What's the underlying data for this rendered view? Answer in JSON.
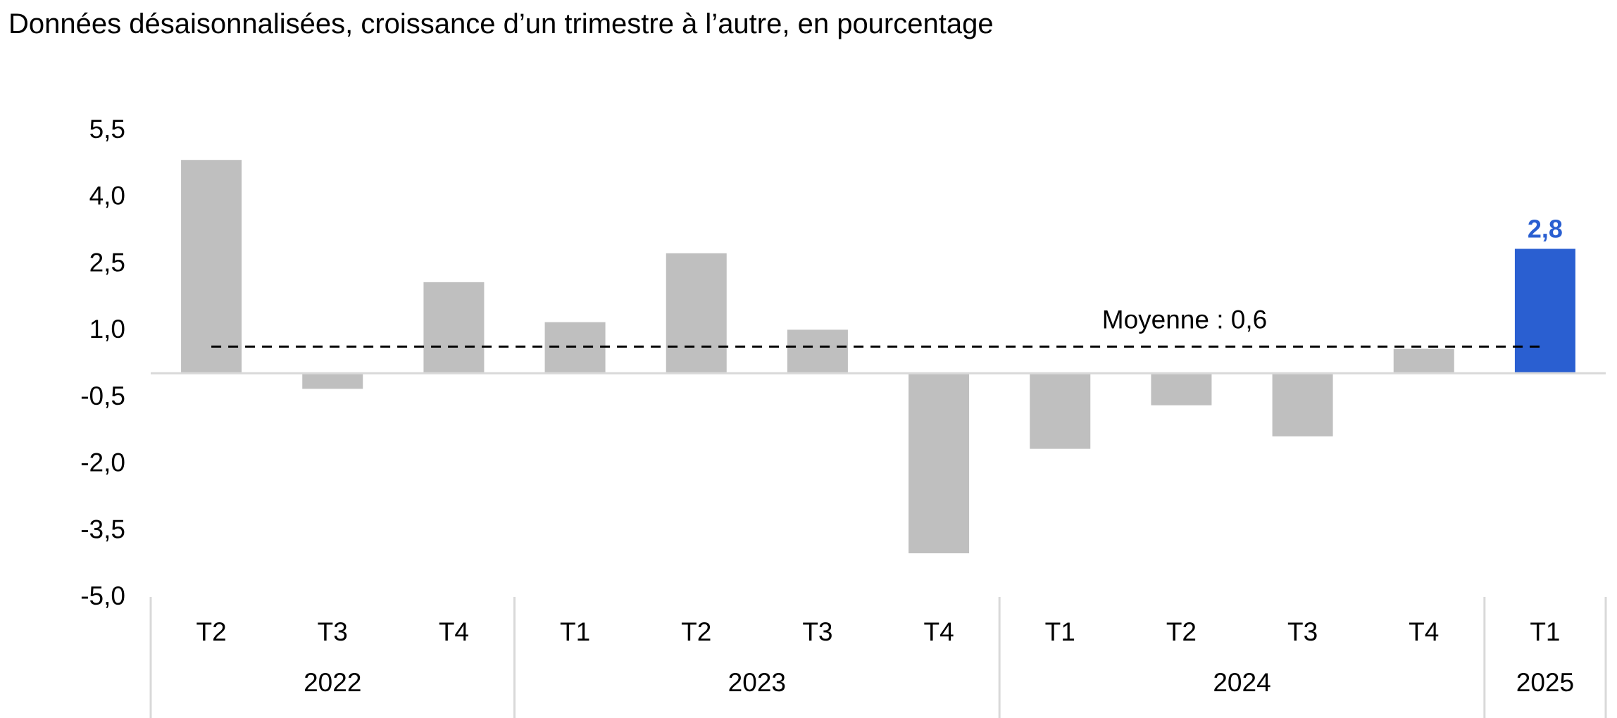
{
  "subtitle": "Données désaisonnalisées, croissance d’un trimestre à l’autre, en pourcentage",
  "average_label": "Moyenne : 0,6",
  "colors": {
    "bar": "#bfbfbf",
    "highlight": "#2a5fd1",
    "axis": "#d9d9d9",
    "average_line": "#000000"
  },
  "chart_data": {
    "type": "bar",
    "categories": [
      "T2",
      "T3",
      "T4",
      "T1",
      "T2",
      "T3",
      "T4",
      "T1",
      "T2",
      "T3",
      "T4",
      "T1"
    ],
    "groups": [
      {
        "label": "2022",
        "count": 3
      },
      {
        "label": "2023",
        "count": 4
      },
      {
        "label": "2024",
        "count": 4
      },
      {
        "label": "2025",
        "count": 1
      }
    ],
    "values": [
      4.8,
      -0.35,
      2.05,
      1.15,
      2.7,
      0.98,
      -4.05,
      -1.7,
      -0.72,
      -1.42,
      0.55,
      2.8
    ],
    "highlight_index": 11,
    "data_labels": [
      {
        "index": 11,
        "text": "2,8"
      }
    ],
    "average": 0.6,
    "y_ticks": [
      5.5,
      4.0,
      2.5,
      1.0,
      -0.5,
      -2.0,
      -3.5,
      -5.0
    ],
    "y_tick_labels": [
      "5,5",
      "4,0",
      "2,5",
      "1,0",
      "-0,5",
      "-2,0",
      "-3,5",
      "-5,0"
    ],
    "ylim": [
      -5.0,
      5.5
    ],
    "xlabel": "",
    "ylabel": "",
    "grid": false,
    "legend": "none"
  }
}
